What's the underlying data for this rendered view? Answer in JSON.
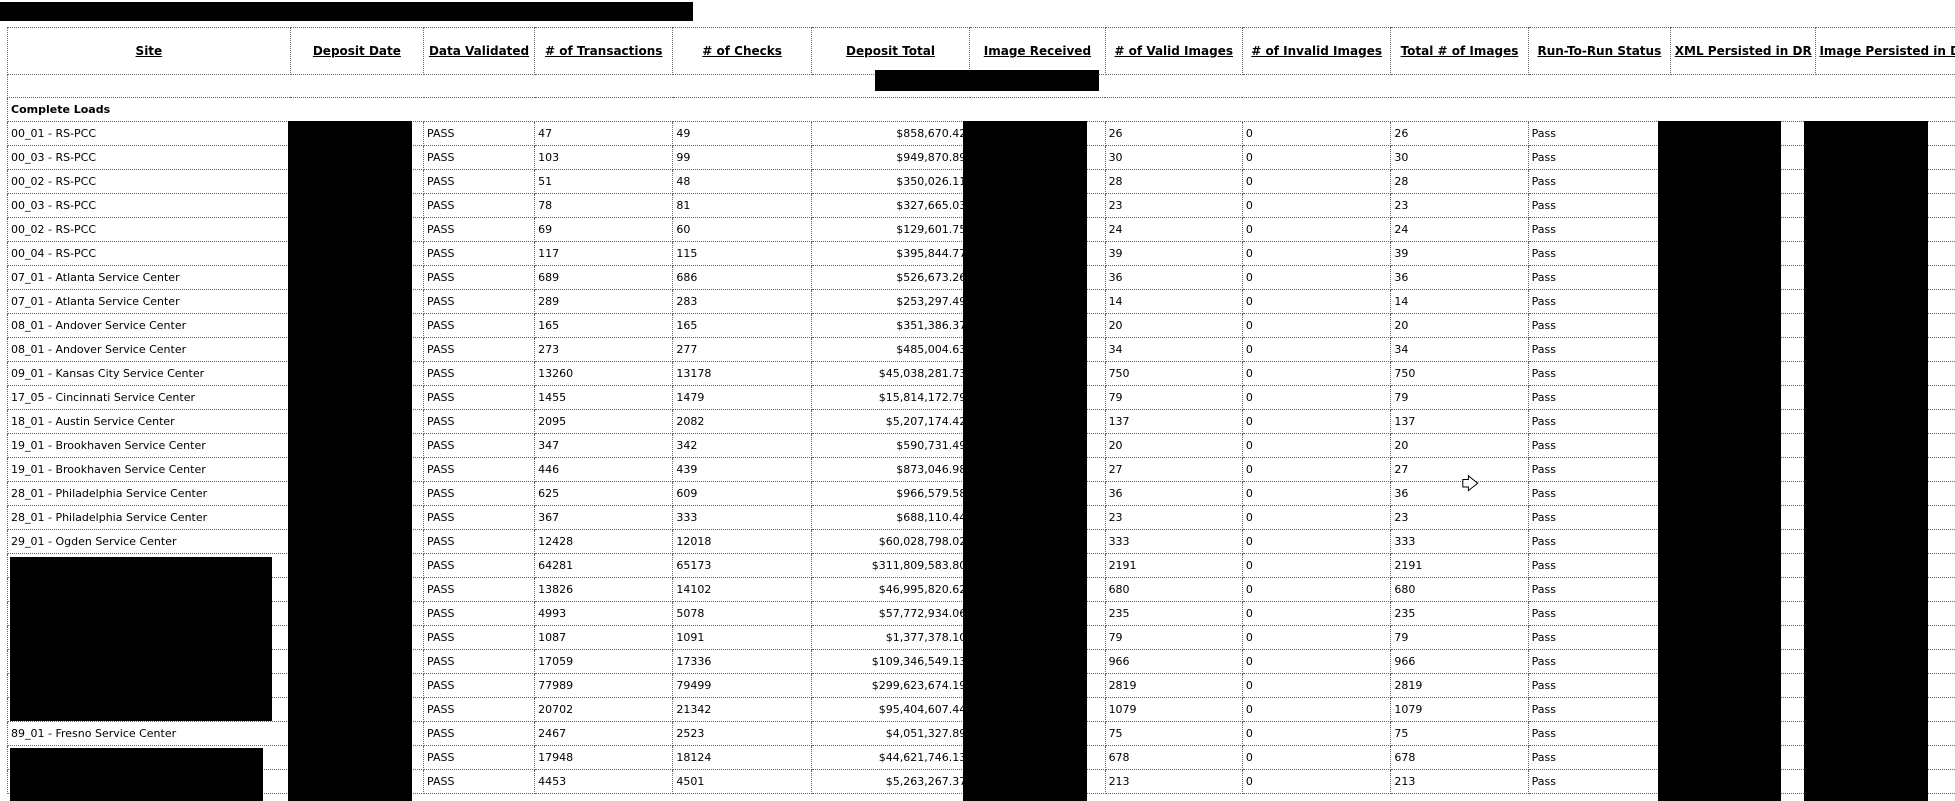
{
  "columns": [
    "Site",
    "Deposit Date",
    "Data Validated",
    "# of Transactions",
    "# of Checks",
    "Deposit Total",
    "Image Received",
    "# of Valid Images",
    "# of Invalid Images",
    "Total # of Images",
    "Run-To-Run Status",
    "XML Persisted in DR",
    "Image Persisted in DR"
  ],
  "section_label": "Complete Loads",
  "rows": [
    {
      "site": "00_01 - RS-PCC",
      "validated": "PASS",
      "transactions": "47",
      "checks": "49",
      "total": "$858,670.42",
      "valid": "26",
      "invalid": "0",
      "images": "26",
      "status": "Pass"
    },
    {
      "site": "00_03 - RS-PCC",
      "validated": "PASS",
      "transactions": "103",
      "checks": "99",
      "total": "$949,870.89",
      "valid": "30",
      "invalid": "0",
      "images": "30",
      "status": "Pass"
    },
    {
      "site": "00_02 - RS-PCC",
      "validated": "PASS",
      "transactions": "51",
      "checks": "48",
      "total": "$350,026.11",
      "valid": "28",
      "invalid": "0",
      "images": "28",
      "status": "Pass"
    },
    {
      "site": "00_03 - RS-PCC",
      "validated": "PASS",
      "transactions": "78",
      "checks": "81",
      "total": "$327,665.03",
      "valid": "23",
      "invalid": "0",
      "images": "23",
      "status": "Pass"
    },
    {
      "site": "00_02 - RS-PCC",
      "validated": "PASS",
      "transactions": "69",
      "checks": "60",
      "total": "$129,601.75",
      "valid": "24",
      "invalid": "0",
      "images": "24",
      "status": "Pass"
    },
    {
      "site": "00_04 - RS-PCC",
      "validated": "PASS",
      "transactions": "117",
      "checks": "115",
      "total": "$395,844.77",
      "valid": "39",
      "invalid": "0",
      "images": "39",
      "status": "Pass"
    },
    {
      "site": "07_01 - Atlanta Service Center",
      "validated": "PASS",
      "transactions": "689",
      "checks": "686",
      "total": "$526,673.26",
      "valid": "36",
      "invalid": "0",
      "images": "36",
      "status": "Pass"
    },
    {
      "site": "07_01 - Atlanta Service Center",
      "validated": "PASS",
      "transactions": "289",
      "checks": "283",
      "total": "$253,297.49",
      "valid": "14",
      "invalid": "0",
      "images": "14",
      "status": "Pass"
    },
    {
      "site": "08_01 - Andover Service Center",
      "validated": "PASS",
      "transactions": "165",
      "checks": "165",
      "total": "$351,386.37",
      "valid": "20",
      "invalid": "0",
      "images": "20",
      "status": "Pass"
    },
    {
      "site": "08_01 - Andover Service Center",
      "validated": "PASS",
      "transactions": "273",
      "checks": "277",
      "total": "$485,004.63",
      "valid": "34",
      "invalid": "0",
      "images": "34",
      "status": "Pass"
    },
    {
      "site": "09_01 - Kansas City Service Center",
      "validated": "PASS",
      "transactions": "13260",
      "checks": "13178",
      "total": "$45,038,281.73",
      "valid": "750",
      "invalid": "0",
      "images": "750",
      "status": "Pass"
    },
    {
      "site": "17_05 - Cincinnati Service Center",
      "validated": "PASS",
      "transactions": "1455",
      "checks": "1479",
      "total": "$15,814,172.79",
      "valid": "79",
      "invalid": "0",
      "images": "79",
      "status": "Pass"
    },
    {
      "site": "18_01 - Austin Service Center",
      "validated": "PASS",
      "transactions": "2095",
      "checks": "2082",
      "total": "$5,207,174.42",
      "valid": "137",
      "invalid": "0",
      "images": "137",
      "status": "Pass"
    },
    {
      "site": "19_01 - Brookhaven Service Center",
      "validated": "PASS",
      "transactions": "347",
      "checks": "342",
      "total": "$590,731.49",
      "valid": "20",
      "invalid": "0",
      "images": "20",
      "status": "Pass"
    },
    {
      "site": "19_01 - Brookhaven Service Center",
      "validated": "PASS",
      "transactions": "446",
      "checks": "439",
      "total": "$873,046.98",
      "valid": "27",
      "invalid": "0",
      "images": "27",
      "status": "Pass"
    },
    {
      "site": "28_01 - Philadelphia Service Center",
      "validated": "PASS",
      "transactions": "625",
      "checks": "609",
      "total": "$966,579.58",
      "valid": "36",
      "invalid": "0",
      "images": "36",
      "status": "Pass"
    },
    {
      "site": "28_01 - Philadelphia Service Center",
      "validated": "PASS",
      "transactions": "367",
      "checks": "333",
      "total": "$688,110.44",
      "valid": "23",
      "invalid": "0",
      "images": "23",
      "status": "Pass"
    },
    {
      "site": "29_01 - Ogden Service Center",
      "validated": "PASS",
      "transactions": "12428",
      "checks": "12018",
      "total": "$60,028,798.02",
      "valid": "333",
      "invalid": "0",
      "images": "333",
      "status": "Pass"
    },
    {
      "site": "",
      "validated": "PASS",
      "transactions": "64281",
      "checks": "65173",
      "total": "$311,809,583.80",
      "valid": "2191",
      "invalid": "0",
      "images": "2191",
      "status": "Pass"
    },
    {
      "site": "",
      "validated": "PASS",
      "transactions": "13826",
      "checks": "14102",
      "total": "$46,995,820.62",
      "valid": "680",
      "invalid": "0",
      "images": "680",
      "status": "Pass"
    },
    {
      "site": "",
      "validated": "PASS",
      "transactions": "4993",
      "checks": "5078",
      "total": "$57,772,934.06",
      "valid": "235",
      "invalid": "0",
      "images": "235",
      "status": "Pass"
    },
    {
      "site": "",
      "validated": "PASS",
      "transactions": "1087",
      "checks": "1091",
      "total": "$1,377,378.10",
      "valid": "79",
      "invalid": "0",
      "images": "79",
      "status": "Pass"
    },
    {
      "site": "",
      "validated": "PASS",
      "transactions": "17059",
      "checks": "17336",
      "total": "$109,346,549.13",
      "valid": "966",
      "invalid": "0",
      "images": "966",
      "status": "Pass"
    },
    {
      "site": "",
      "validated": "PASS",
      "transactions": "77989",
      "checks": "79499",
      "total": "$299,623,674.19",
      "valid": "2819",
      "invalid": "0",
      "images": "2819",
      "status": "Pass"
    },
    {
      "site": "",
      "validated": "PASS",
      "transactions": "20702",
      "checks": "21342",
      "total": "$95,404,607.44",
      "valid": "1079",
      "invalid": "0",
      "images": "1079",
      "status": "Pass"
    },
    {
      "site": "89_01 - Fresno Service Center",
      "validated": "PASS",
      "transactions": "2467",
      "checks": "2523",
      "total": "$4,051,327.89",
      "valid": "75",
      "invalid": "0",
      "images": "75",
      "status": "Pass"
    },
    {
      "site": "",
      "validated": "PASS",
      "transactions": "17948",
      "checks": "18124",
      "total": "$44,621,746.13",
      "valid": "678",
      "invalid": "0",
      "images": "678",
      "status": "Pass"
    },
    {
      "site": "",
      "validated": "PASS",
      "transactions": "4453",
      "checks": "4501",
      "total": "$5,263,267.37",
      "valid": "213",
      "invalid": "0",
      "images": "213",
      "status": "Pass"
    }
  ]
}
